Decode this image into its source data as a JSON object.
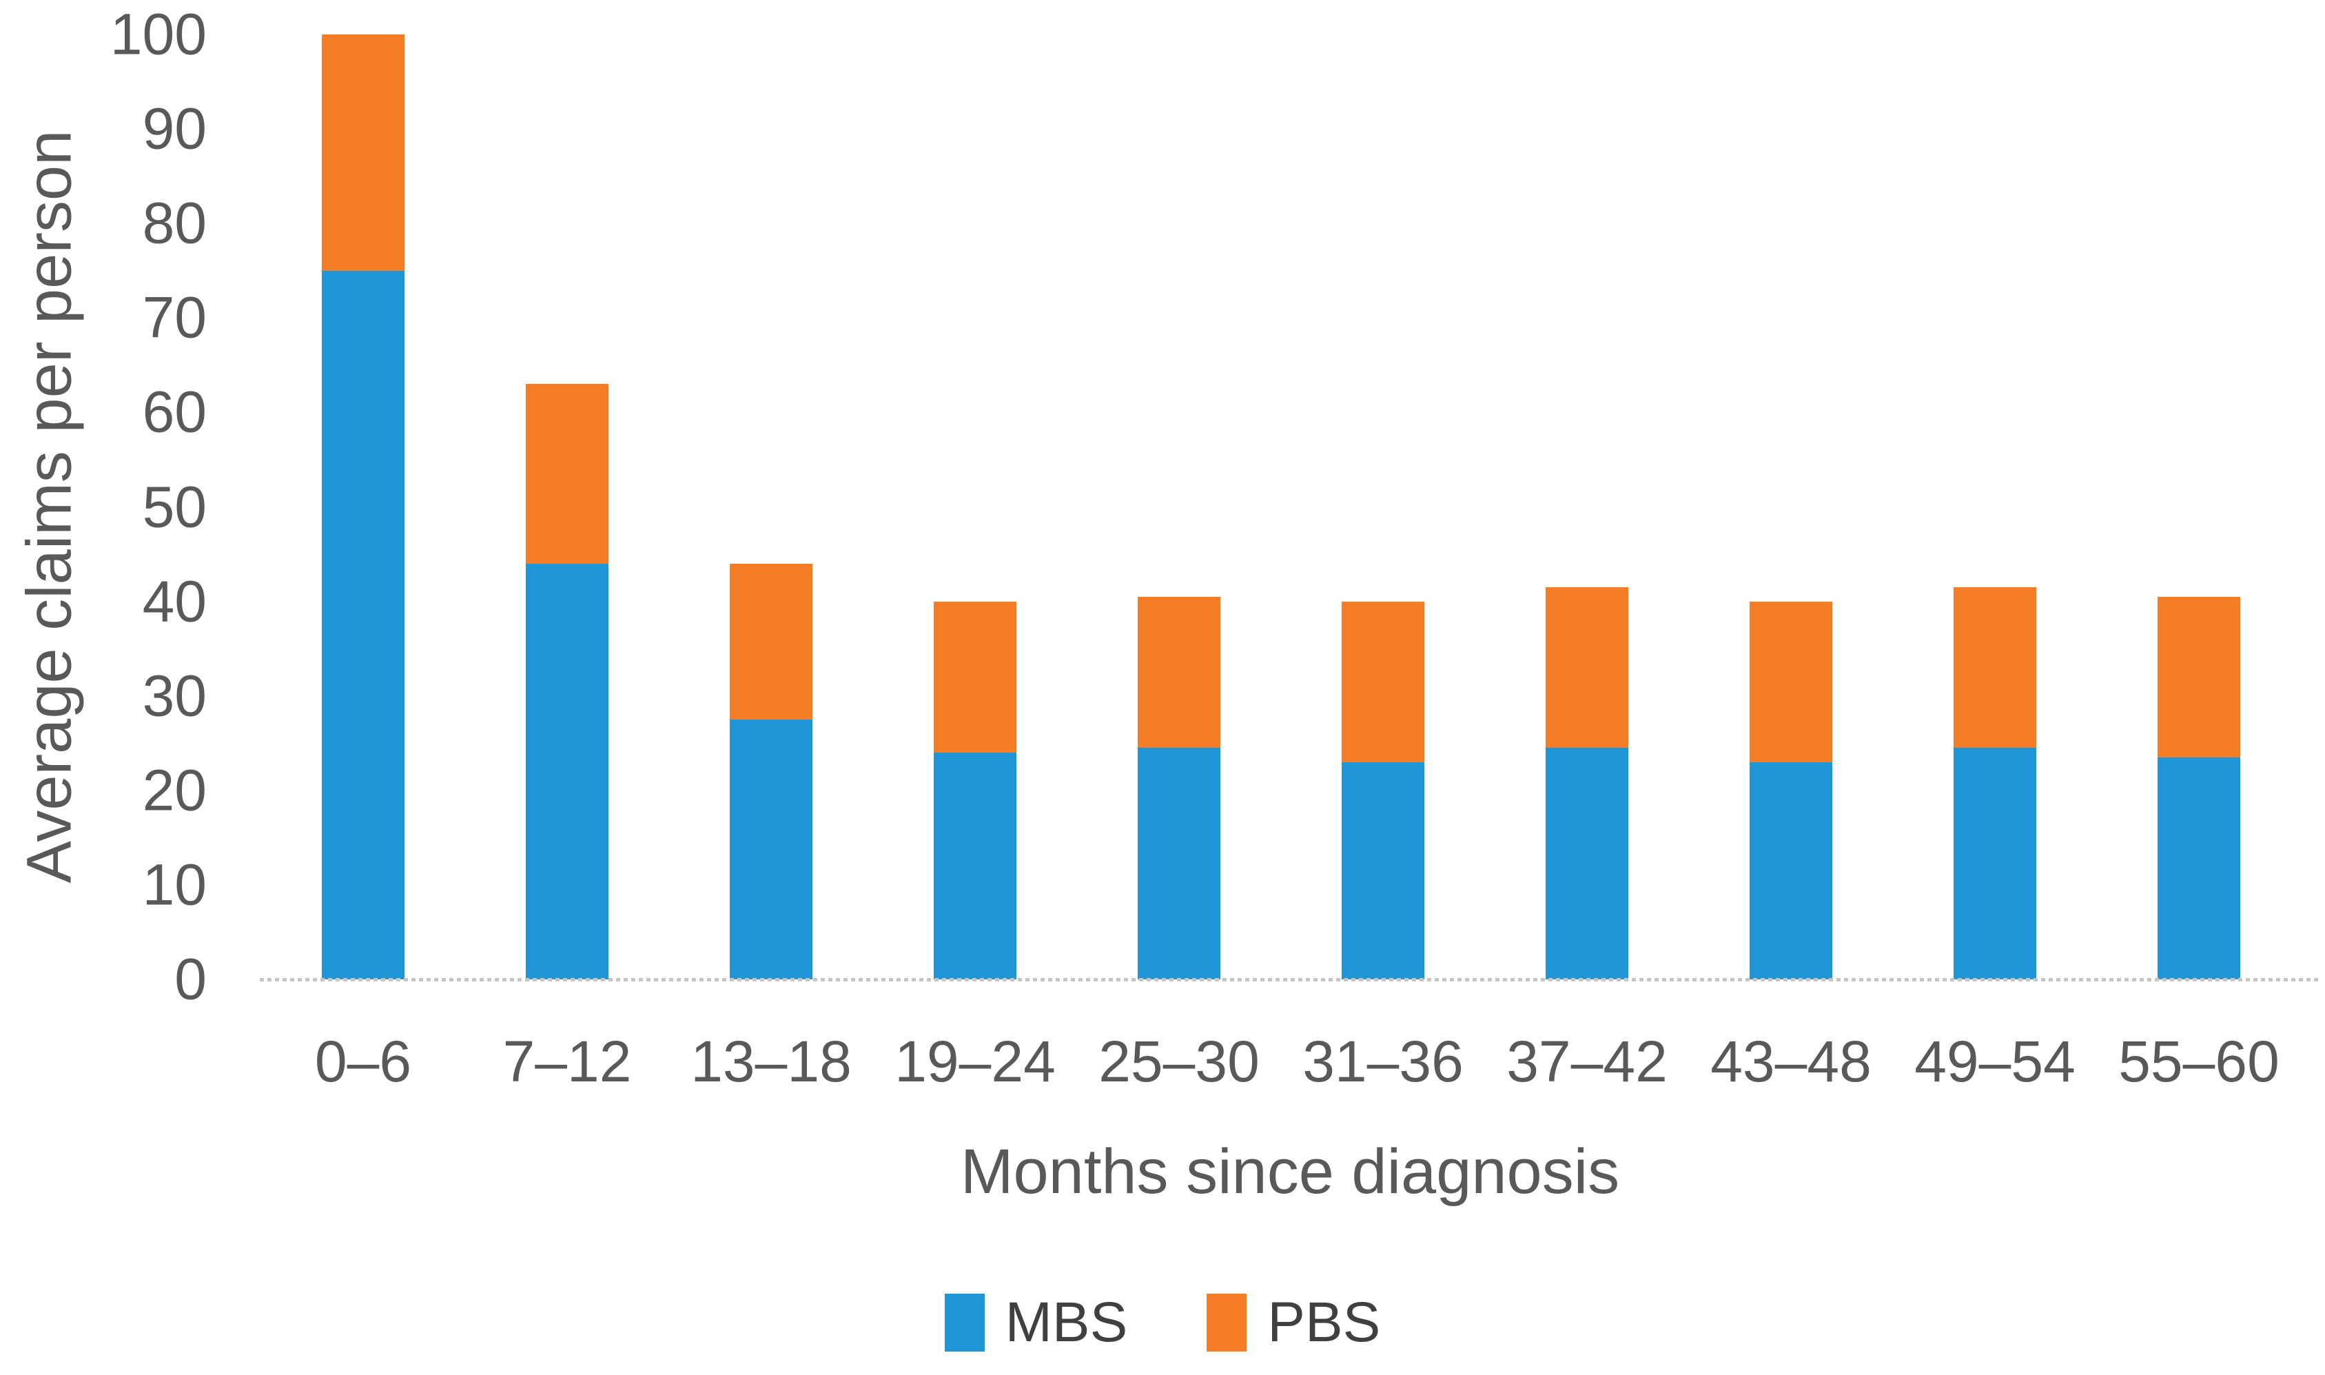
{
  "chart_data": {
    "type": "bar",
    "stacked": true,
    "title": "",
    "xlabel": "Months since diagnosis",
    "ylabel": "Average claims per person",
    "ylim": [
      0,
      100
    ],
    "y_ticks": [
      0,
      10,
      20,
      30,
      40,
      50,
      60,
      70,
      80,
      90,
      100
    ],
    "grid": false,
    "legend_position": "bottom",
    "categories": [
      "0–6",
      "7–12",
      "13–18",
      "19–24",
      "25–30",
      "31–36",
      "37–42",
      "43–48",
      "49–54",
      "55–60"
    ],
    "series": [
      {
        "name": "MBS",
        "color": "#2196d7",
        "values": [
          75,
          44,
          27.5,
          24,
          24.5,
          23,
          24.5,
          23,
          24.5,
          23.5
        ]
      },
      {
        "name": "PBS",
        "color": "#f57d28",
        "values": [
          25,
          19,
          16.5,
          16,
          16,
          17,
          17,
          17,
          17,
          17
        ]
      }
    ],
    "totals": [
      100,
      63,
      44,
      40,
      40.5,
      40,
      41.5,
      40,
      41.5,
      40.5
    ],
    "text_color": "#595959",
    "axis_line_color": "#c6c6c6"
  }
}
